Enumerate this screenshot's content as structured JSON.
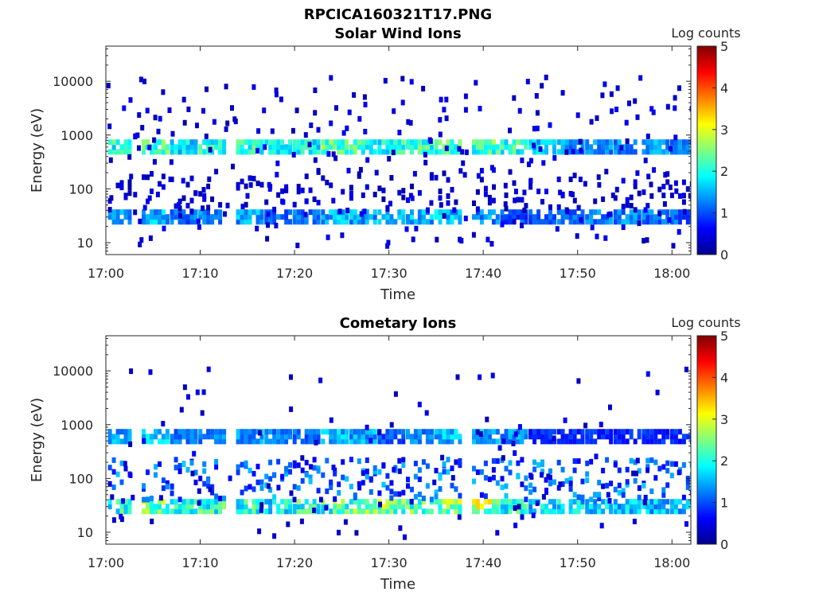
{
  "figure_title": "RPCICA160321T17.PNG",
  "colorbar": {
    "label": "Log counts",
    "min": 0,
    "max": 5,
    "ticks": [
      "0",
      "1",
      "2",
      "3",
      "4",
      "5"
    ],
    "colormap": "jet"
  },
  "chart_data": [
    {
      "type": "heatmap",
      "title": "Solar Wind Ions",
      "xlabel": "Time",
      "ylabel": "Energy (eV)",
      "xlim": [
        "17:00",
        "18:02"
      ],
      "ylim": [
        6,
        45000
      ],
      "yscale": "log",
      "xticks": [
        "17:00",
        "17:10",
        "17:20",
        "17:30",
        "17:40",
        "17:50",
        "18:00"
      ],
      "yticks": [
        "10",
        "100",
        "1000",
        "10000"
      ],
      "value_range": [
        0,
        5
      ],
      "bursts": [
        {
          "time": "17:00",
          "ion_energy_eV": 600,
          "ion_log_counts": 2.5,
          "low_energy_eV": 30,
          "low_log_counts": 1.8
        },
        {
          "time": "17:04",
          "ion_energy_eV": 600,
          "ion_log_counts": 2.7,
          "low_energy_eV": 30,
          "low_log_counts": 1.9
        },
        {
          "time": "17:07",
          "ion_energy_eV": 600,
          "ion_log_counts": 2.2,
          "low_energy_eV": 30,
          "low_log_counts": 1.5
        },
        {
          "time": "17:10",
          "ion_energy_eV": 600,
          "ion_log_counts": 2.6,
          "low_energy_eV": 30,
          "low_log_counts": 1.6
        },
        {
          "time": "17:14",
          "ion_energy_eV": 600,
          "ion_log_counts": 2.5,
          "low_energy_eV": 30,
          "low_log_counts": 1.8
        },
        {
          "time": "17:17",
          "ion_energy_eV": 600,
          "ion_log_counts": 2.4,
          "low_energy_eV": 30,
          "low_log_counts": 1.4
        },
        {
          "time": "17:20",
          "ion_energy_eV": 600,
          "ion_log_counts": 2.3,
          "low_energy_eV": 30,
          "low_log_counts": 1.4
        },
        {
          "time": "17:23",
          "ion_energy_eV": 600,
          "ion_log_counts": 2.8,
          "low_energy_eV": 30,
          "low_log_counts": 1.9
        },
        {
          "time": "17:26",
          "ion_energy_eV": 600,
          "ion_log_counts": 2.7,
          "low_energy_eV": 30,
          "low_log_counts": 1.8
        },
        {
          "time": "17:29",
          "ion_energy_eV": 600,
          "ion_log_counts": 2.5,
          "low_energy_eV": 30,
          "low_log_counts": 1.9
        },
        {
          "time": "17:32",
          "ion_energy_eV": 600,
          "ion_log_counts": 2.6,
          "low_energy_eV": 30,
          "low_log_counts": 1.9
        },
        {
          "time": "17:35",
          "ion_energy_eV": 600,
          "ion_log_counts": 2.9,
          "low_energy_eV": 30,
          "low_log_counts": 2.0
        },
        {
          "time": "17:39",
          "ion_energy_eV": 600,
          "ion_log_counts": 2.8,
          "low_energy_eV": 30,
          "low_log_counts": 1.7
        },
        {
          "time": "17:42",
          "ion_energy_eV": 600,
          "ion_log_counts": 2.6,
          "low_energy_eV": 30,
          "low_log_counts": 1.3
        },
        {
          "time": "17:45",
          "ion_energy_eV": 600,
          "ion_log_counts": 2.0,
          "low_energy_eV": 30,
          "low_log_counts": 1.3
        },
        {
          "time": "17:48",
          "ion_energy_eV": 600,
          "ion_log_counts": 1.7,
          "low_energy_eV": 30,
          "low_log_counts": 1.4
        },
        {
          "time": "17:51",
          "ion_energy_eV": 600,
          "ion_log_counts": 1.6,
          "low_energy_eV": 30,
          "low_log_counts": 1.6
        },
        {
          "time": "17:54",
          "ion_energy_eV": 600,
          "ion_log_counts": 1.6,
          "low_energy_eV": 30,
          "low_log_counts": 1.6
        },
        {
          "time": "17:57",
          "ion_energy_eV": 600,
          "ion_log_counts": 1.7,
          "low_energy_eV": 30,
          "low_log_counts": 1.5
        },
        {
          "time": "18:00",
          "ion_energy_eV": 600,
          "ion_log_counts": 1.5,
          "low_energy_eV": 30,
          "low_log_counts": 1.4
        }
      ]
    },
    {
      "type": "heatmap",
      "title": "Cometary Ions",
      "xlabel": "Time",
      "ylabel": "Energy (eV)",
      "xlim": [
        "17:00",
        "18:02"
      ],
      "ylim": [
        6,
        45000
      ],
      "yscale": "log",
      "xticks": [
        "17:00",
        "17:10",
        "17:20",
        "17:30",
        "17:40",
        "17:50",
        "18:00"
      ],
      "yticks": [
        "10",
        "100",
        "1000",
        "10000"
      ],
      "value_range": [
        0,
        5
      ],
      "bursts": [
        {
          "time": "17:00",
          "ion_energy_eV": 600,
          "ion_log_counts": 1.8,
          "low_energy_eV": 30,
          "low_log_counts": 2.6
        },
        {
          "time": "17:04",
          "ion_energy_eV": 600,
          "ion_log_counts": 2.0,
          "low_energy_eV": 30,
          "low_log_counts": 3.2
        },
        {
          "time": "17:07",
          "ion_energy_eV": 600,
          "ion_log_counts": 1.5,
          "low_energy_eV": 30,
          "low_log_counts": 2.5
        },
        {
          "time": "17:10",
          "ion_energy_eV": 600,
          "ion_log_counts": 1.6,
          "low_energy_eV": 30,
          "low_log_counts": 2.7
        },
        {
          "time": "17:14",
          "ion_energy_eV": 600,
          "ion_log_counts": 1.7,
          "low_energy_eV": 30,
          "low_log_counts": 2.6
        },
        {
          "time": "17:17",
          "ion_energy_eV": 600,
          "ion_log_counts": 1.5,
          "low_energy_eV": 30,
          "low_log_counts": 2.4
        },
        {
          "time": "17:20",
          "ion_energy_eV": 600,
          "ion_log_counts": 1.4,
          "low_energy_eV": 30,
          "low_log_counts": 2.7
        },
        {
          "time": "17:23",
          "ion_energy_eV": 600,
          "ion_log_counts": 1.9,
          "low_energy_eV": 30,
          "low_log_counts": 2.8
        },
        {
          "time": "17:26",
          "ion_energy_eV": 600,
          "ion_log_counts": 1.8,
          "low_energy_eV": 30,
          "low_log_counts": 3.0
        },
        {
          "time": "17:29",
          "ion_energy_eV": 600,
          "ion_log_counts": 1.3,
          "low_energy_eV": 30,
          "low_log_counts": 3.1
        },
        {
          "time": "17:32",
          "ion_energy_eV": 600,
          "ion_log_counts": 1.6,
          "low_energy_eV": 30,
          "low_log_counts": 2.9
        },
        {
          "time": "17:35",
          "ion_energy_eV": 600,
          "ion_log_counts": 1.9,
          "low_energy_eV": 30,
          "low_log_counts": 3.3
        },
        {
          "time": "17:39",
          "ion_energy_eV": 600,
          "ion_log_counts": 1.8,
          "low_energy_eV": 30,
          "low_log_counts": 3.4
        },
        {
          "time": "17:42",
          "ion_energy_eV": 600,
          "ion_log_counts": 1.7,
          "low_energy_eV": 30,
          "low_log_counts": 2.6
        },
        {
          "time": "17:45",
          "ion_energy_eV": 600,
          "ion_log_counts": 1.0,
          "low_energy_eV": 30,
          "low_log_counts": 2.2
        },
        {
          "time": "17:48",
          "ion_energy_eV": 600,
          "ion_log_counts": 1.0,
          "low_energy_eV": 30,
          "low_log_counts": 2.2
        },
        {
          "time": "17:51",
          "ion_energy_eV": 600,
          "ion_log_counts": 1.0,
          "low_energy_eV": 30,
          "low_log_counts": 2.1
        },
        {
          "time": "17:54",
          "ion_energy_eV": 600,
          "ion_log_counts": 1.0,
          "low_energy_eV": 30,
          "low_log_counts": 2.1
        },
        {
          "time": "17:57",
          "ion_energy_eV": 600,
          "ion_log_counts": 1.0,
          "low_energy_eV": 30,
          "low_log_counts": 2.0
        },
        {
          "time": "18:00",
          "ion_energy_eV": 600,
          "ion_log_counts": 1.0,
          "low_energy_eV": 30,
          "low_log_counts": 2.0
        }
      ]
    }
  ]
}
